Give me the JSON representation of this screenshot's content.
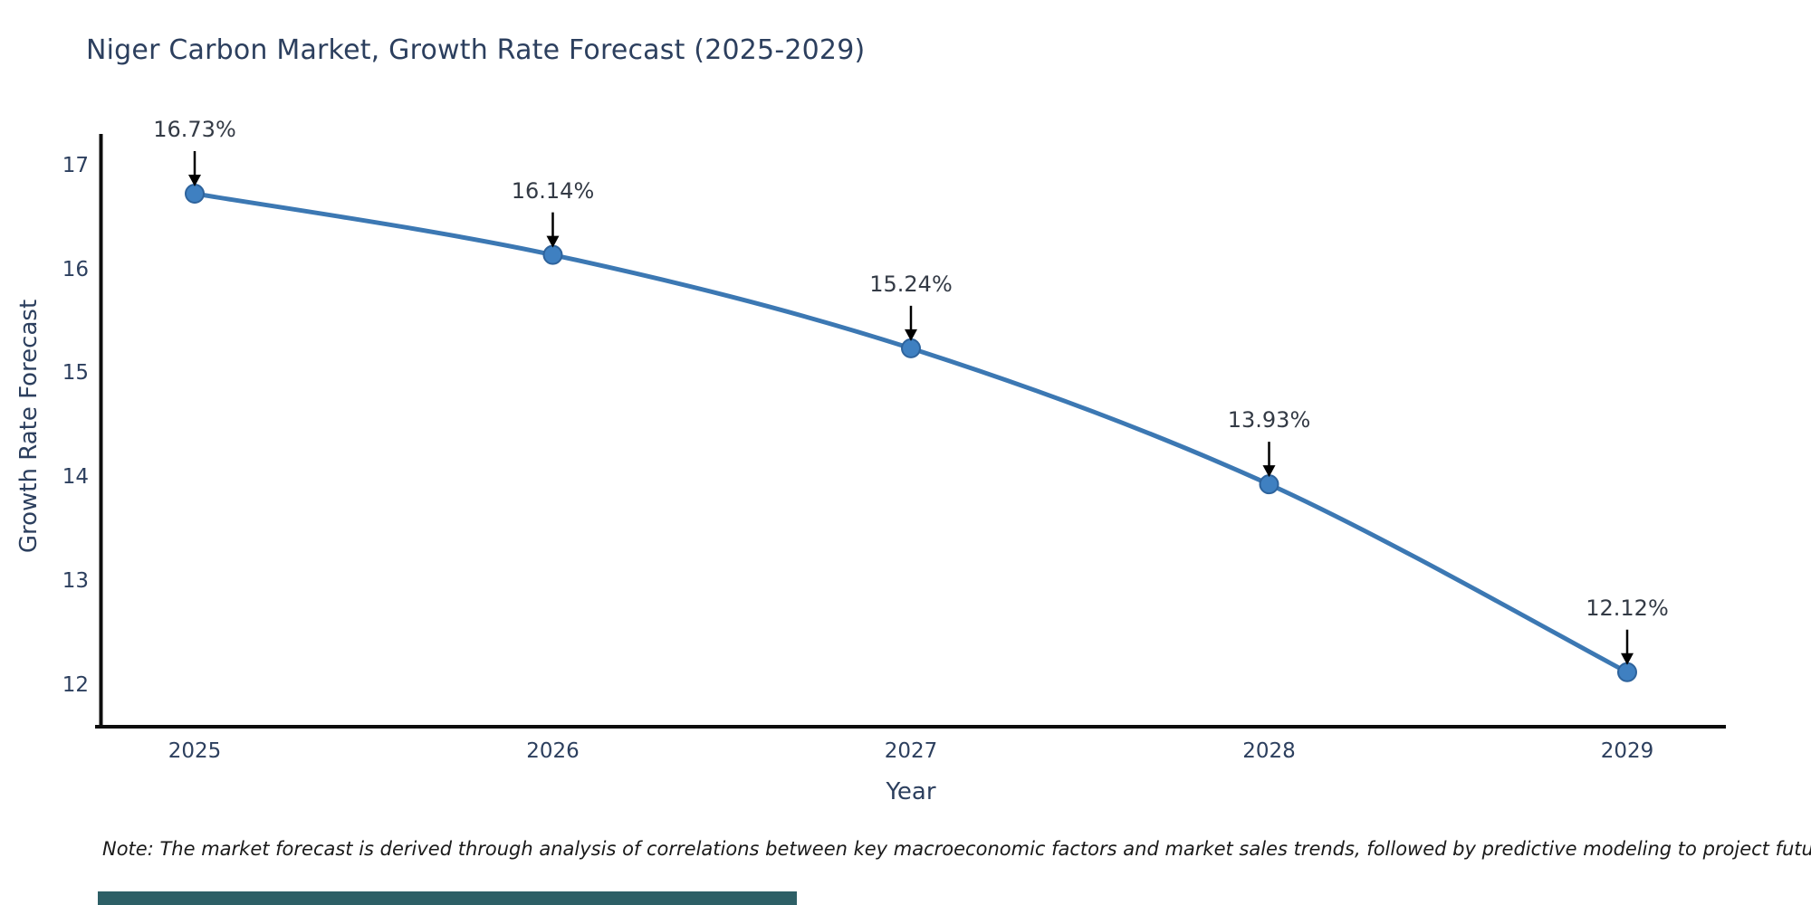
{
  "chart_data": {
    "type": "line",
    "title": "Niger Carbon Market, Growth Rate Forecast (2025-2029)",
    "xlabel": "Year",
    "ylabel": "Growth Rate Forecast",
    "x": [
      2025,
      2026,
      2027,
      2028,
      2029
    ],
    "y": [
      16.73,
      16.14,
      15.24,
      13.93,
      12.12
    ],
    "point_labels": [
      "16.73%",
      "16.14%",
      "15.24%",
      "13.93%",
      "12.12%"
    ],
    "xtick_labels": [
      "2025",
      "2026",
      "2027",
      "2028",
      "2029"
    ],
    "ytick_labels": [
      "12",
      "13",
      "14",
      "15",
      "16",
      "17"
    ],
    "ytick_values": [
      12,
      13,
      14,
      15,
      16,
      17
    ],
    "ylim": [
      11.59,
      17.29
    ],
    "grid": false,
    "legend_position": "none",
    "line_shape": "spline",
    "marker": "circle",
    "annotation_arrows": true
  },
  "colors": {
    "line": "#3C78B3",
    "marker": "#3F80C1",
    "marker_edge": "#2E639C",
    "axis_spine": "#0D0D0D",
    "title_text": "#2C3F5E",
    "tick_text": "#2C3F5E",
    "annotation_text": "#333A45",
    "arrow": "#000000",
    "note_text": "#1A1A1A",
    "bottom_bar": "#2D5F66"
  },
  "note": {
    "text": "Note: The market forecast is derived through analysis of correlations between key macroeconomic factors and market sales trends, followed by predictive modeling to project future sales"
  }
}
